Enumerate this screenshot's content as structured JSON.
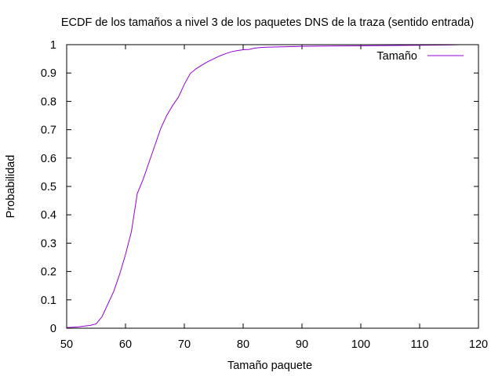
{
  "chart_data": {
    "type": "line",
    "title": "ECDF de los tamaños a nivel 3 de los paquetes DNS de la traza (sentido entrada)",
    "xlabel": "Tamaño paquete",
    "ylabel": "Probabilidad",
    "xlim": [
      50,
      120
    ],
    "ylim": [
      0,
      1
    ],
    "xticks": [
      50,
      60,
      70,
      80,
      90,
      100,
      110,
      120
    ],
    "yticks": [
      0,
      0.1,
      0.2,
      0.3,
      0.4,
      0.5,
      0.6,
      0.7,
      0.8,
      0.9,
      1
    ],
    "ytick_labels": [
      "0",
      "0.1",
      "0.2",
      "0.3",
      "0.4",
      "0.5",
      "0.6",
      "0.7",
      "0.8",
      "0.9",
      "1"
    ],
    "grid": false,
    "legend_position": "top-right",
    "series": [
      {
        "name": "Tamaño",
        "color": "#9400d3",
        "x": [
          50,
          52,
          54,
          55,
          56,
          57,
          58,
          59,
          60,
          61,
          62,
          63,
          64,
          65,
          66,
          67,
          68,
          69,
          70,
          71,
          72,
          73,
          74,
          75,
          76,
          77,
          78,
          79,
          80,
          81,
          82,
          83,
          84,
          86,
          88,
          90,
          95,
          100,
          105,
          110,
          115,
          117
        ],
        "y": [
          0.002,
          0.005,
          0.01,
          0.015,
          0.04,
          0.085,
          0.13,
          0.19,
          0.26,
          0.34,
          0.475,
          0.525,
          0.585,
          0.645,
          0.705,
          0.75,
          0.785,
          0.815,
          0.86,
          0.898,
          0.915,
          0.928,
          0.94,
          0.95,
          0.96,
          0.968,
          0.975,
          0.979,
          0.982,
          0.983,
          0.988,
          0.99,
          0.991,
          0.992,
          0.993,
          0.994,
          0.995,
          0.996,
          0.997,
          0.998,
          0.999,
          1.0
        ]
      }
    ]
  }
}
